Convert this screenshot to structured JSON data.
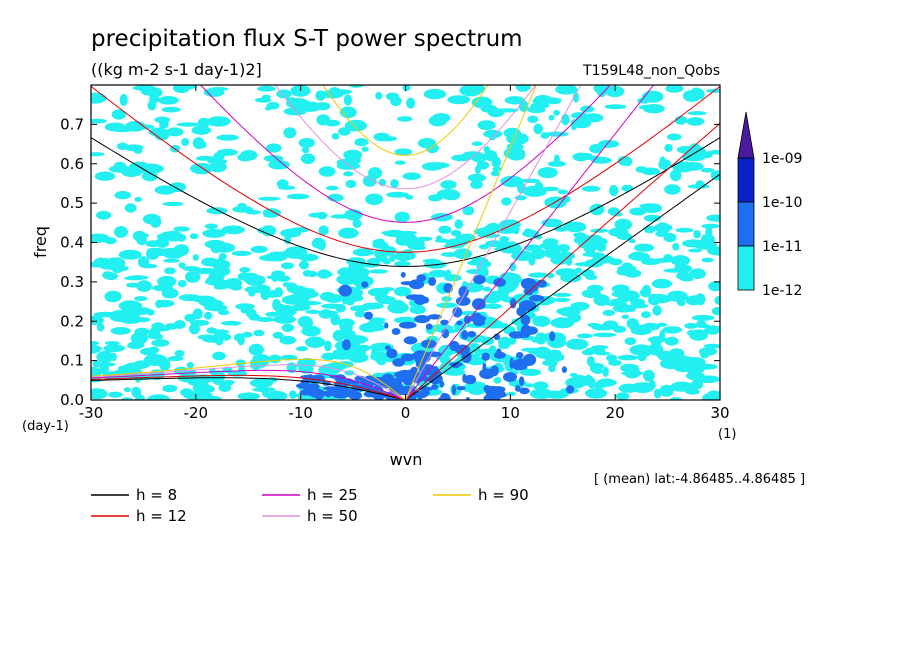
{
  "chart_data": {
    "type": "heatmap",
    "title": "precipitation flux S-T power spectrum",
    "units": "((kg m-2 s-1 day-1)2]",
    "run_label": "T159L48_non_Qobs",
    "xlabel": "wvn",
    "ylabel": "freq",
    "x_unit": "(1)",
    "y_unit": "(day-1)",
    "xlim": [
      -30,
      30
    ],
    "ylim": [
      0,
      0.8
    ],
    "x_ticks": [
      "-30",
      "-20",
      "-10",
      "0",
      "10",
      "20",
      "30"
    ],
    "y_ticks": [
      "0.0",
      "0.1",
      "0.2",
      "0.3",
      "0.4",
      "0.5",
      "0.6",
      "0.7"
    ],
    "subset_note": "[ (mean) lat:-4.86485..4.86485 ]",
    "colorbar": {
      "labels": [
        "1e-09",
        "1e-10",
        "1e-11",
        "1e-12"
      ],
      "levels": [
        1e-12,
        1e-11,
        1e-10,
        1e-09
      ],
      "colors": [
        "#22f0f0",
        "#1f6ef0",
        "#0a22c8",
        "#4a1aa0"
      ]
    },
    "dispersion_curves": [
      {
        "label": "h =  8",
        "h": 8,
        "color": "#000000"
      },
      {
        "label": "h = 12",
        "h": 12,
        "color": "#e00000"
      },
      {
        "label": "h = 25",
        "h": 25,
        "color": "#d000c0"
      },
      {
        "label": "h = 50",
        "h": 50,
        "color": "#e090e0"
      },
      {
        "label": "h = 90",
        "h": 90,
        "color": "#f0c800"
      }
    ]
  }
}
